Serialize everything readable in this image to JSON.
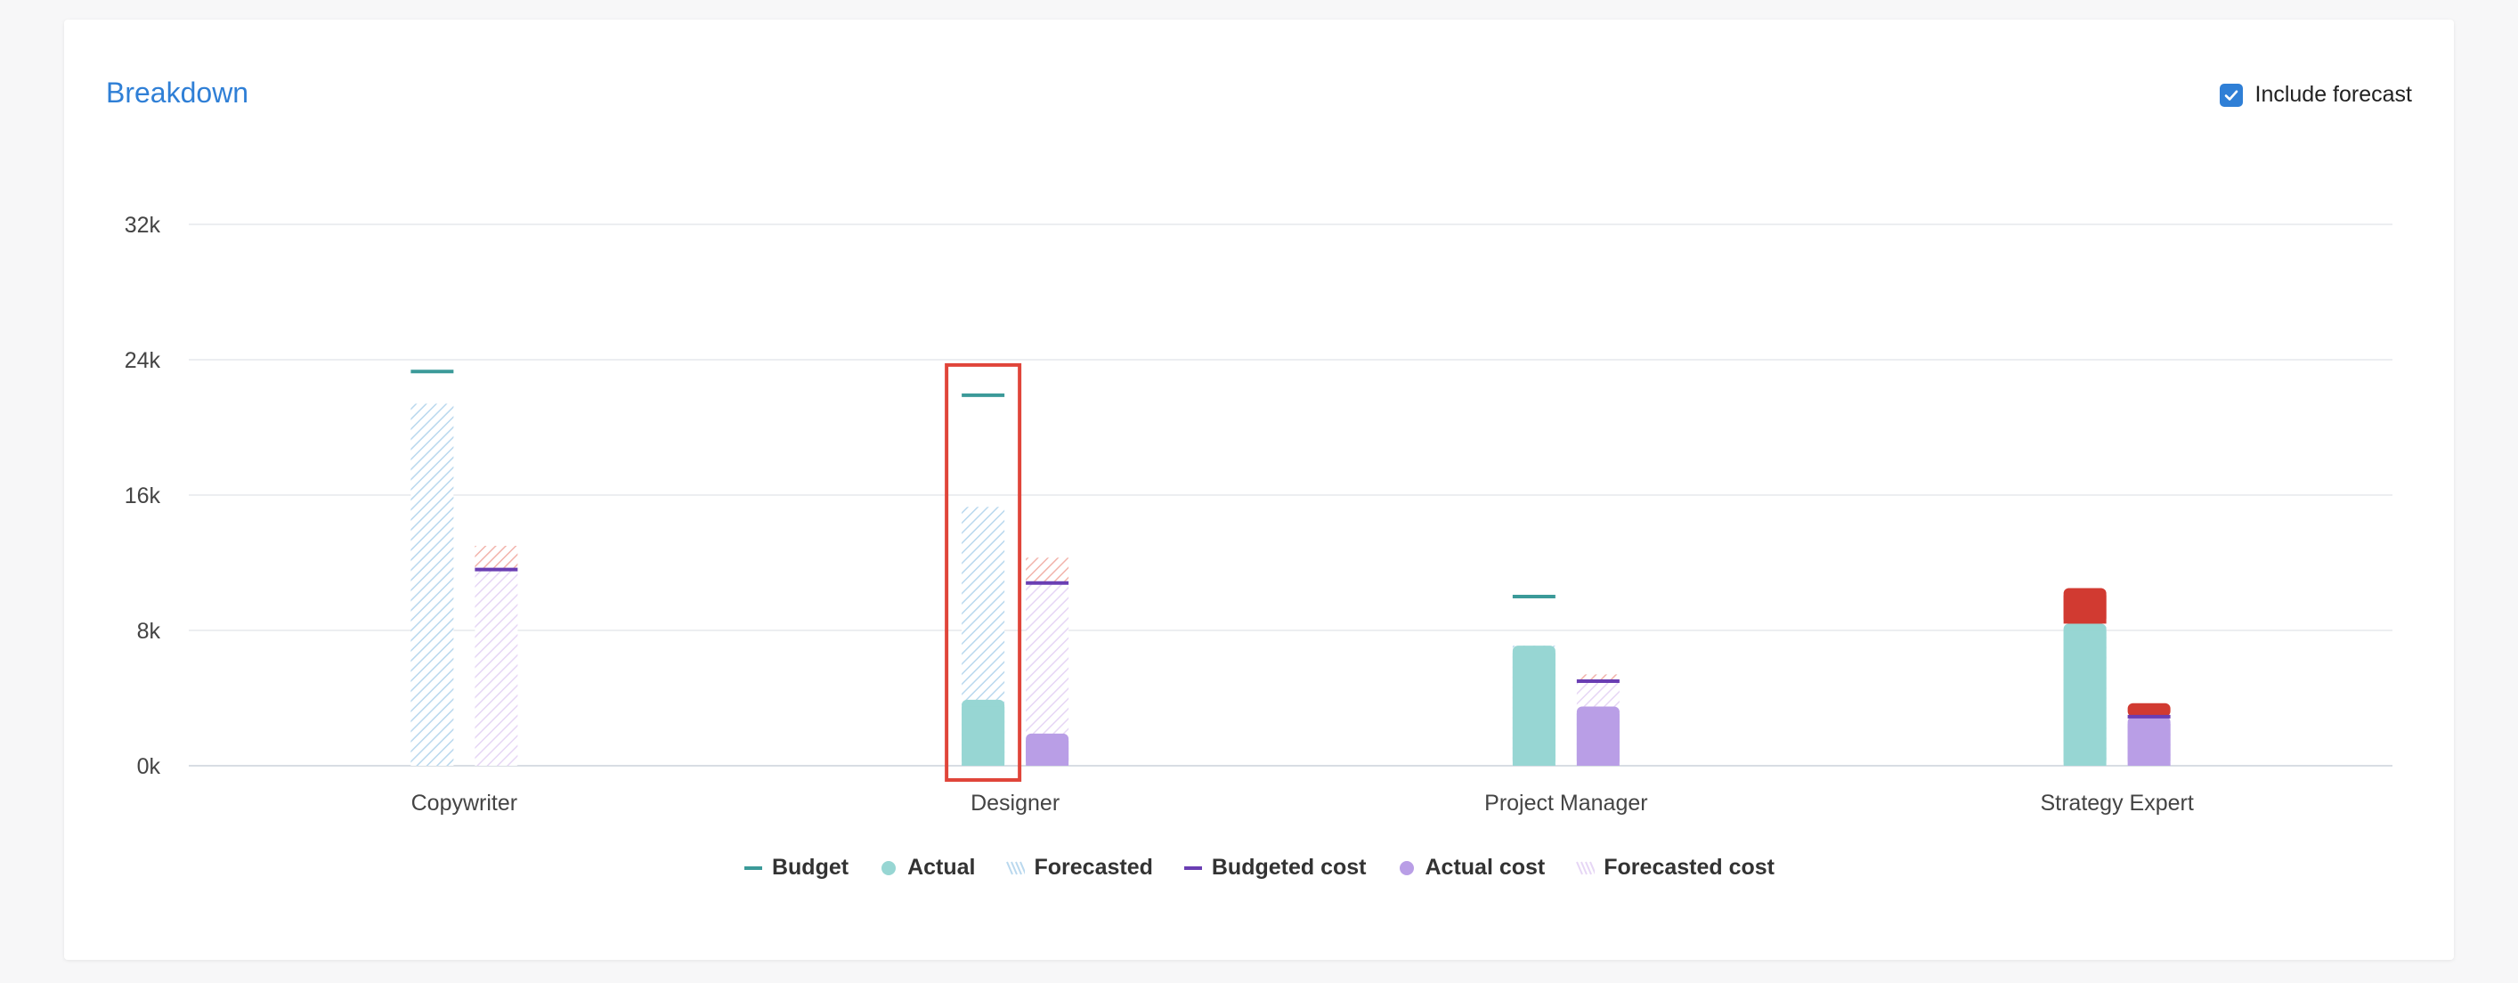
{
  "header": {
    "title": "Breakdown",
    "forecast_toggle_label": "Include forecast",
    "forecast_checked": true
  },
  "colors": {
    "title": "#2f7fd6",
    "budget": "#3b9a99",
    "actual": "#97d6d3",
    "forecasted": "#b9d8ee",
    "budgeted_cost": "#6a3eb3",
    "actual_cost": "#b99ee6",
    "forecasted_cost": "#e6d6f5",
    "over_budget": "#d13a31",
    "over_budget_forecast": "#f2b3ab",
    "highlight": "#e0453a"
  },
  "legend": [
    {
      "label": "Budget",
      "marker": "line",
      "color_key": "budget"
    },
    {
      "label": "Actual",
      "marker": "dot",
      "color_key": "actual"
    },
    {
      "label": "Forecasted",
      "marker": "hatch",
      "color_key": "forecasted"
    },
    {
      "label": "Budgeted cost",
      "marker": "line",
      "color_key": "budgeted_cost"
    },
    {
      "label": "Actual cost",
      "marker": "dot",
      "color_key": "actual_cost"
    },
    {
      "label": "Forecasted cost",
      "marker": "hatch",
      "color_key": "forecasted_cost"
    }
  ],
  "chart_data": {
    "type": "bar",
    "title": "Breakdown",
    "categories": [
      "Copywriter",
      "Designer",
      "Project Manager",
      "Strategy Expert"
    ],
    "y_ticks": [
      "0k",
      "8k",
      "16k",
      "24k",
      "32k"
    ],
    "ylim": [
      0,
      32000
    ],
    "grid": true,
    "legend_position": "bottom",
    "highlighted_category": "Designer",
    "series": [
      {
        "name": "Budget",
        "values": [
          23300,
          21900,
          10000,
          0
        ]
      },
      {
        "name": "Actual",
        "values": [
          0,
          3900,
          7100,
          8400
        ]
      },
      {
        "name": "Forecasted",
        "values": [
          21400,
          15300,
          7100,
          8400
        ]
      },
      {
        "name": "Budgeted cost",
        "values": [
          11600,
          10800,
          5000,
          2900
        ]
      },
      {
        "name": "Actual cost",
        "values": [
          0,
          1900,
          3500,
          2900
        ]
      },
      {
        "name": "Forecasted cost",
        "values": [
          13000,
          12300,
          5400,
          3700
        ]
      }
    ],
    "over_budget_actual": [
      0,
      0,
      0,
      10500
    ]
  }
}
